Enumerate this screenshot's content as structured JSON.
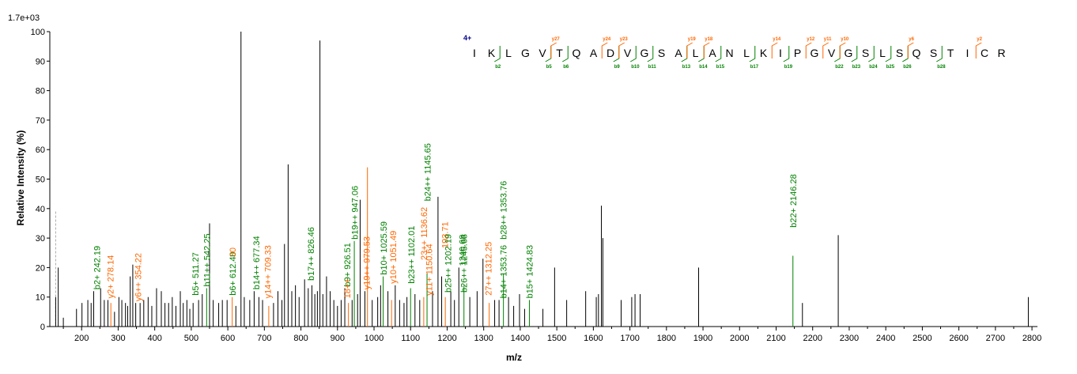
{
  "chart_data": {
    "type": "bar",
    "max_intensity_label": "1.7e+03",
    "ylabel": "Relative Intensity (%)",
    "xlabel": "m/z",
    "xlim": [
      113,
      2815
    ],
    "ylim": [
      0,
      100
    ],
    "x_ticks": [
      200,
      300,
      400,
      500,
      600,
      700,
      800,
      900,
      1000,
      1100,
      1200,
      1300,
      1400,
      1500,
      1600,
      1700,
      1800,
      1900,
      2000,
      2100,
      2200,
      2300,
      2400,
      2500,
      2600,
      2700,
      2800
    ],
    "y_ticks": [
      0,
      10,
      20,
      30,
      40,
      50,
      60,
      70,
      80,
      90,
      100
    ],
    "colors": {
      "b_ion": "#008000",
      "y_ion": "#ff6600",
      "other": "#000000",
      "charge": "#00008b"
    },
    "peaks": [
      [
        129,
        10
      ],
      [
        136,
        20
      ],
      [
        150,
        3
      ],
      [
        186,
        6
      ],
      [
        201,
        8
      ],
      [
        217,
        9
      ],
      [
        226,
        8
      ],
      [
        233,
        12
      ],
      [
        252,
        13
      ],
      [
        262,
        9
      ],
      [
        272,
        9
      ],
      [
        280,
        8
      ],
      [
        290,
        5
      ],
      [
        302,
        10
      ],
      [
        310,
        9
      ],
      [
        320,
        8
      ],
      [
        326,
        7
      ],
      [
        333,
        17
      ],
      [
        340,
        21
      ],
      [
        348,
        8
      ],
      [
        360,
        8
      ],
      [
        370,
        9
      ],
      [
        382,
        10
      ],
      [
        392,
        7
      ],
      [
        405,
        13
      ],
      [
        418,
        12
      ],
      [
        428,
        8
      ],
      [
        438,
        8
      ],
      [
        448,
        10
      ],
      [
        458,
        7
      ],
      [
        470,
        12
      ],
      [
        478,
        8
      ],
      [
        488,
        9
      ],
      [
        496,
        6
      ],
      [
        505,
        8
      ],
      [
        520,
        9
      ],
      [
        530,
        11
      ],
      [
        542,
        13
      ],
      [
        550,
        35
      ],
      [
        560,
        9
      ],
      [
        575,
        8
      ],
      [
        585,
        9
      ],
      [
        598,
        9
      ],
      [
        612,
        10
      ],
      [
        622,
        7
      ],
      [
        636,
        100
      ],
      [
        645,
        10
      ],
      [
        660,
        9
      ],
      [
        672,
        12
      ],
      [
        685,
        10
      ],
      [
        695,
        9
      ],
      [
        712,
        7
      ],
      [
        725,
        8
      ],
      [
        737,
        12
      ],
      [
        748,
        9
      ],
      [
        755,
        28
      ],
      [
        765,
        55
      ],
      [
        775,
        12
      ],
      [
        785,
        14
      ],
      [
        795,
        10
      ],
      [
        810,
        16
      ],
      [
        820,
        13
      ],
      [
        830,
        14
      ],
      [
        838,
        11
      ],
      [
        845,
        12
      ],
      [
        852,
        97
      ],
      [
        860,
        11
      ],
      [
        870,
        17
      ],
      [
        880,
        12
      ],
      [
        890,
        9
      ],
      [
        900,
        7
      ],
      [
        910,
        9
      ],
      [
        920,
        13
      ],
      [
        930,
        8
      ],
      [
        940,
        9
      ],
      [
        946,
        29
      ],
      [
        955,
        11
      ],
      [
        962,
        43
      ],
      [
        975,
        12
      ],
      [
        982,
        54
      ],
      [
        995,
        9
      ],
      [
        1010,
        10
      ],
      [
        1018,
        14
      ],
      [
        1025,
        17
      ],
      [
        1038,
        12
      ],
      [
        1048,
        9
      ],
      [
        1058,
        14
      ],
      [
        1070,
        9
      ],
      [
        1082,
        8
      ],
      [
        1090,
        10
      ],
      [
        1100,
        13
      ],
      [
        1112,
        11
      ],
      [
        1125,
        9
      ],
      [
        1136,
        10
      ],
      [
        1145,
        18
      ],
      [
        1160,
        12
      ],
      [
        1175,
        44
      ],
      [
        1185,
        17
      ],
      [
        1195,
        10
      ],
      [
        1210,
        12
      ],
      [
        1220,
        9
      ],
      [
        1232,
        20
      ],
      [
        1246,
        14
      ],
      [
        1262,
        10
      ],
      [
        1282,
        12
      ],
      [
        1298,
        23
      ],
      [
        1315,
        8
      ],
      [
        1330,
        9
      ],
      [
        1342,
        9
      ],
      [
        1354,
        18
      ],
      [
        1368,
        10
      ],
      [
        1382,
        7
      ],
      [
        1398,
        11
      ],
      [
        1412,
        6
      ],
      [
        1425,
        9
      ],
      [
        1462,
        6
      ],
      [
        1494,
        20
      ],
      [
        1527,
        9
      ],
      [
        1579,
        12
      ],
      [
        1608,
        10
      ],
      [
        1614,
        11
      ],
      [
        1622,
        41
      ],
      [
        1626,
        30
      ],
      [
        1676,
        9
      ],
      [
        1705,
        10
      ],
      [
        1714,
        11
      ],
      [
        1728,
        11
      ],
      [
        1888,
        20
      ],
      [
        2146,
        24
      ],
      [
        2172,
        8
      ],
      [
        2270,
        31
      ],
      [
        2790,
        10
      ]
    ],
    "annotations": [
      {
        "mz": 242.19,
        "text": "b2+ 242.19",
        "ion": "b",
        "y": 12
      },
      {
        "mz": 278.14,
        "text": "y2+ 278.14",
        "ion": "y",
        "y": 9
      },
      {
        "mz": 354.22,
        "text": "y6++ 354.22",
        "ion": "y",
        "y": 8
      },
      {
        "mz": 511.27,
        "text": "b5+ 511.27",
        "ion": "b",
        "y": 10
      },
      {
        "mz": 542.25,
        "text": "b11++ 542.25",
        "ion": "b",
        "y": 13
      },
      {
        "mz": 612.4,
        "text": "b6+ 612.40",
        "ion": "b",
        "y": 10
      },
      {
        "mz": 612.4,
        "text": "30",
        "ion": "y",
        "y": 23
      },
      {
        "mz": 677.34,
        "text": "b14++ 677.34",
        "ion": "b",
        "y": 12
      },
      {
        "mz": 709.33,
        "text": "y14++ 709.33",
        "ion": "y",
        "y": 9
      },
      {
        "mz": 826.46,
        "text": "b17++ 826.46",
        "ion": "b",
        "y": 15
      },
      {
        "mz": 926.51,
        "text": "b9+ 926.51",
        "ion": "b",
        "y": 13
      },
      {
        "mz": 926.51,
        "text": "18++",
        "ion": "y",
        "y": 9
      },
      {
        "mz": 947.06,
        "text": "b19++ 947.06",
        "ion": "b",
        "y": 29
      },
      {
        "mz": 979.53,
        "text": "y19++ 979.53",
        "ion": "y",
        "y": 12
      },
      {
        "mz": 1025.59,
        "text": "b10+ 1025.59",
        "ion": "b",
        "y": 17
      },
      {
        "mz": 1051.49,
        "text": "y10+ 1051.49",
        "ion": "y",
        "y": 14
      },
      {
        "mz": 1102.01,
        "text": "b23++ 1102.01",
        "ion": "b",
        "y": 14
      },
      {
        "mz": 1145.65,
        "text": "b24++ 1145.65",
        "ion": "b",
        "y": 42
      },
      {
        "mz": 1136.62,
        "text": "23++ 1136.62",
        "ion": "y",
        "y": 22
      },
      {
        "mz": 1150.64,
        "text": "y11+ 1150.64",
        "ion": "y",
        "y": 10
      },
      {
        "mz": 1193.71,
        "text": "193.71",
        "ion": "y",
        "y": 26
      },
      {
        "mz": 1202.19,
        "text": "b25++ 1202.19",
        "ion": "b",
        "y": 11
      },
      {
        "mz": 1240.68,
        "text": "1240.68",
        "ion": "b",
        "y": 20
      },
      {
        "mz": 1245.68,
        "text": "b26++ 1245.68",
        "ion": "b",
        "y": 11
      },
      {
        "mz": 1312.25,
        "text": "27++ 1312.25",
        "ion": "y",
        "y": 10
      },
      {
        "mz": 1353.76,
        "text": "b14+ 1353.76",
        "ion": "b",
        "y": 9
      },
      {
        "mz": 1353.76,
        "text": "b28++ 1353.76",
        "ion": "b",
        "y": 29
      },
      {
        "mz": 1424.83,
        "text": "b15+ 1424.83",
        "ion": "b",
        "y": 9
      },
      {
        "mz": 2146.28,
        "text": "b22+ 2146.28",
        "ion": "b",
        "y": 33
      }
    ],
    "sequence": {
      "charge": "4+",
      "residues": [
        "I",
        "K",
        "L",
        "G",
        "V",
        "T",
        "Q",
        "A",
        "D",
        "V",
        "G",
        "S",
        "A",
        "L",
        "A",
        "N",
        "L",
        "K",
        "I",
        "P",
        "G",
        "V",
        "G",
        "S",
        "L",
        "S",
        "Q",
        "S",
        "T",
        "I",
        "C",
        "R"
      ],
      "b_ions": [
        [
          "b2",
          2
        ],
        [
          "b5",
          5
        ],
        [
          "b6",
          6
        ],
        [
          "b9",
          9
        ],
        [
          "b10",
          10
        ],
        [
          "b11",
          11
        ],
        [
          "b13",
          13
        ],
        [
          "b14",
          14
        ],
        [
          "b15",
          15
        ],
        [
          "b17",
          17
        ],
        [
          "b19",
          19
        ],
        [
          "b22",
          22
        ],
        [
          "b23",
          23
        ],
        [
          "b24",
          24
        ],
        [
          "b25",
          25
        ],
        [
          "b26",
          26
        ],
        [
          "b28",
          28
        ]
      ],
      "y_ions": [
        [
          "y27",
          5
        ],
        [
          "y24",
          8
        ],
        [
          "y23",
          9
        ],
        [
          "y19",
          13
        ],
        [
          "y18",
          14
        ],
        [
          "y14",
          18
        ],
        [
          "y12",
          20
        ],
        [
          "y11",
          21
        ],
        [
          "y10",
          22
        ],
        [
          "y6",
          26
        ],
        [
          "y2",
          30
        ]
      ]
    }
  }
}
